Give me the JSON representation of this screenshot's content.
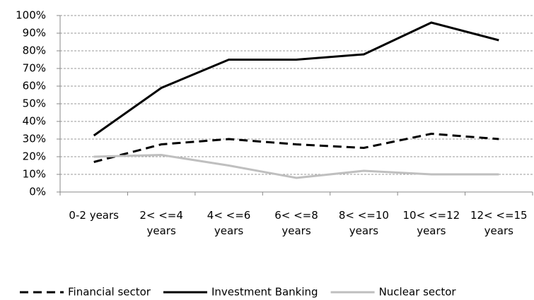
{
  "chart_data": {
    "type": "line",
    "categories": [
      "0-2 years",
      "2<  <=4 years",
      "4<  <=6 years",
      "6<  <=8 years",
      "8<  <=10 years",
      "10< <=12 years",
      "12< <=15 years"
    ],
    "series": [
      {
        "name": "Financial sector",
        "color": "#000000",
        "dashed": true,
        "values": [
          17,
          27,
          30,
          27,
          25,
          33,
          30
        ]
      },
      {
        "name": "Investment Banking",
        "color": "#000000",
        "dashed": false,
        "values": [
          32,
          59,
          75,
          75,
          78,
          96,
          86
        ]
      },
      {
        "name": "Nuclear sector",
        "color": "#bfbfbf",
        "dashed": false,
        "values": [
          20,
          21,
          15,
          8,
          12,
          10,
          10
        ]
      }
    ],
    "ylim": [
      0,
      100
    ],
    "yticks": [
      {
        "value": 0,
        "label": "0%"
      },
      {
        "value": 10,
        "label": "10%"
      },
      {
        "value": 20,
        "label": "20%"
      },
      {
        "value": 30,
        "label": "30%"
      },
      {
        "value": 40,
        "label": "40%"
      },
      {
        "value": 50,
        "label": "50%"
      },
      {
        "value": 60,
        "label": "60%"
      },
      {
        "value": 70,
        "label": "70%"
      },
      {
        "value": 80,
        "label": "80%"
      },
      {
        "value": 90,
        "label": "90%"
      },
      {
        "value": 100,
        "label": "100%"
      }
    ],
    "grid": true,
    "legend": "bottom"
  }
}
